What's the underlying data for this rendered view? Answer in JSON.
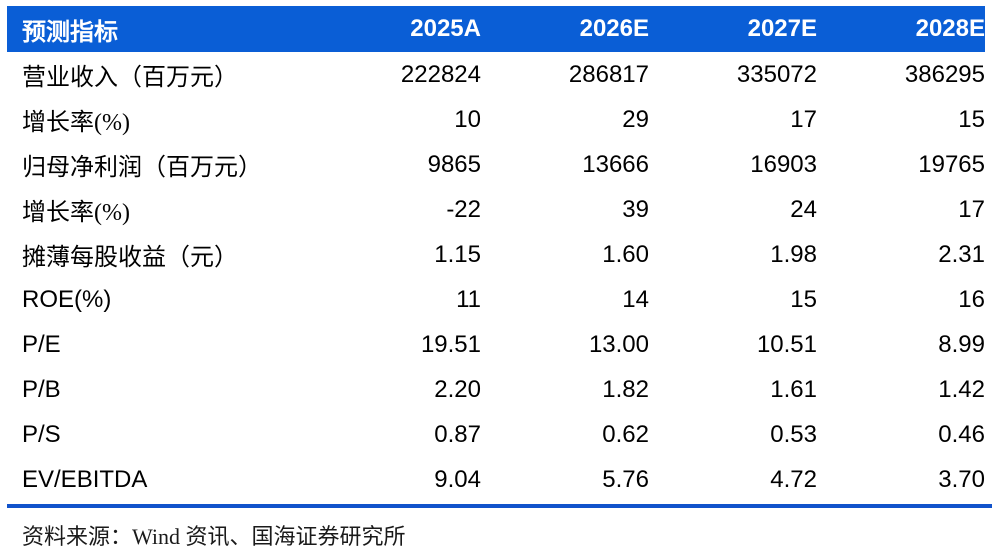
{
  "table": {
    "header": {
      "label": "预测指标",
      "columns": [
        "2025A",
        "2026E",
        "2027E",
        "2028E"
      ]
    },
    "rows": [
      {
        "label": "营业收入（百万元）",
        "values": [
          "222824",
          "286817",
          "335072",
          "386295"
        ]
      },
      {
        "label": "增长率(%)",
        "values": [
          "10",
          "29",
          "17",
          "15"
        ]
      },
      {
        "label": "归母净利润（百万元）",
        "values": [
          "9865",
          "13666",
          "16903",
          "19765"
        ]
      },
      {
        "label": "增长率(%)",
        "values": [
          "-22",
          "39",
          "24",
          "17"
        ]
      },
      {
        "label": "摊薄每股收益（元）",
        "values": [
          "1.15",
          "1.60",
          "1.98",
          "2.31"
        ]
      },
      {
        "label": "ROE(%)",
        "values": [
          "11",
          "14",
          "15",
          "16"
        ]
      },
      {
        "label": "P/E",
        "values": [
          "19.51",
          "13.00",
          "10.51",
          "8.99"
        ]
      },
      {
        "label": "P/B",
        "values": [
          "2.20",
          "1.82",
          "1.61",
          "1.42"
        ]
      },
      {
        "label": "P/S",
        "values": [
          "0.87",
          "0.62",
          "0.53",
          "0.46"
        ]
      },
      {
        "label": "EV/EBITDA",
        "values": [
          "9.04",
          "5.76",
          "4.72",
          "3.70"
        ]
      }
    ],
    "source_note": "资料来源：Wind 资讯、国海证券研究所"
  },
  "colors": {
    "header_bg": "#0a5ed6",
    "header_text": "#ffffff",
    "divider": "#1153cb",
    "body_text": "#000000"
  }
}
